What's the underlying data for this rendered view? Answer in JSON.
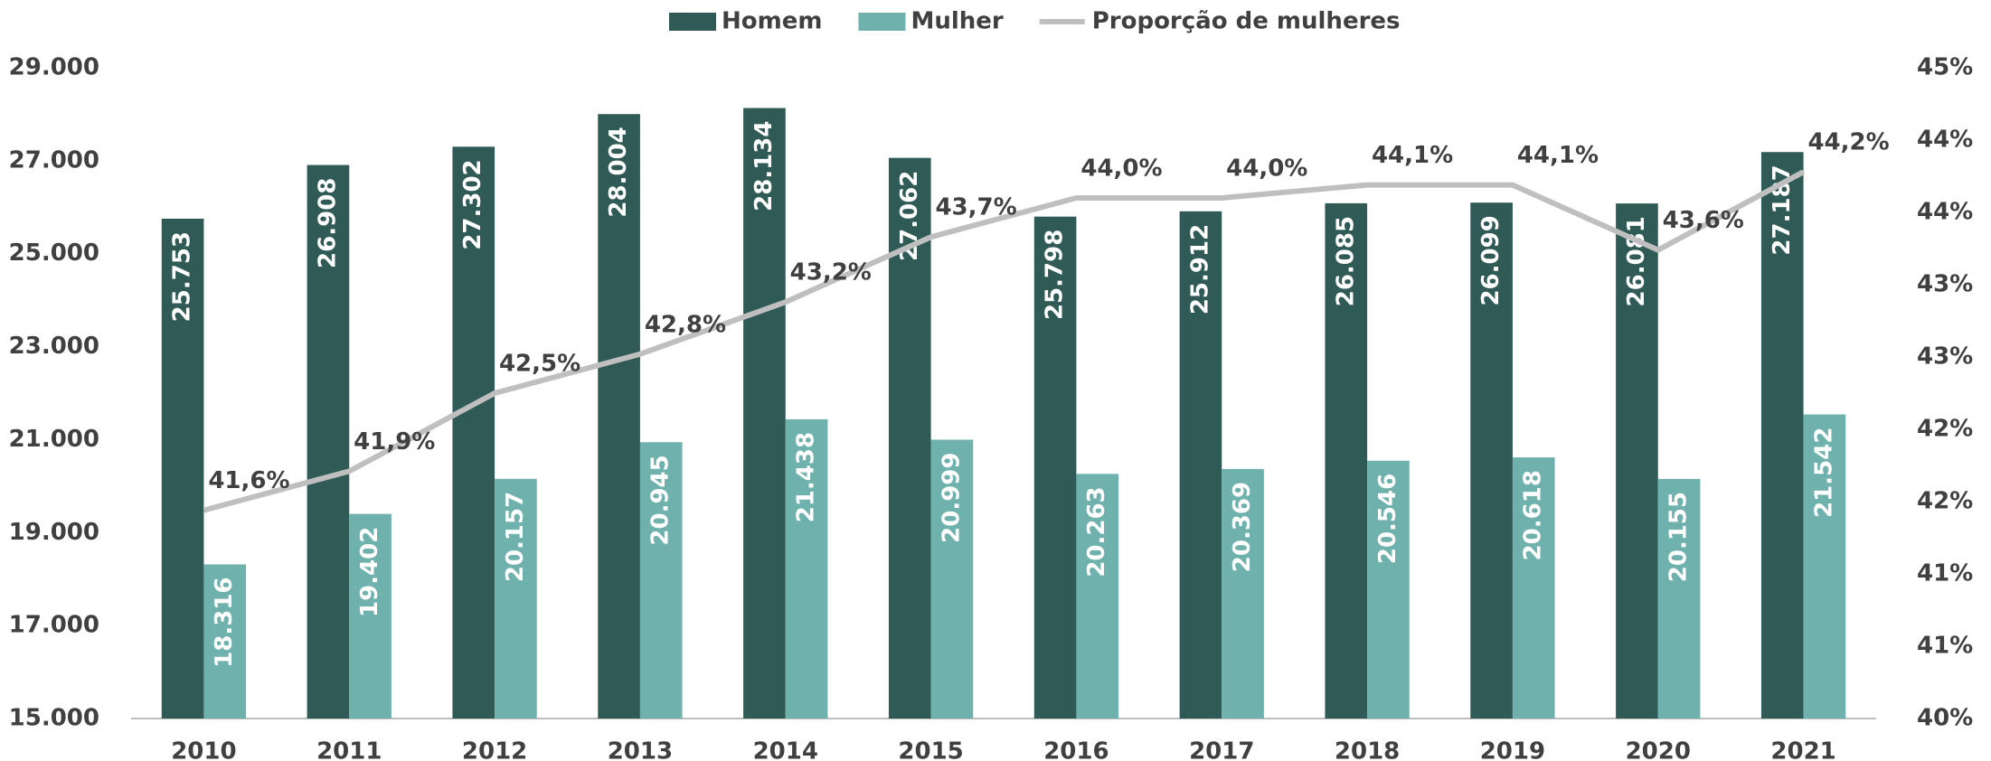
{
  "chart_data": {
    "type": "bar",
    "categories": [
      "2010",
      "2011",
      "2012",
      "2013",
      "2014",
      "2015",
      "2016",
      "2017",
      "2018",
      "2019",
      "2020",
      "2021"
    ],
    "series": [
      {
        "name": "Homem",
        "color": "#2f5a55",
        "type": "bar",
        "values": [
          25753,
          26908,
          27302,
          28004,
          28134,
          27062,
          25798,
          25912,
          26085,
          26099,
          26081,
          27187
        ],
        "value_labels": [
          "25.753",
          "26.908",
          "27.302",
          "28.004",
          "28.134",
          "27.062",
          "25.798",
          "25.912",
          "26.085",
          "26.099",
          "26.081",
          "27.187"
        ]
      },
      {
        "name": "Mulher",
        "color": "#6fb1ad",
        "type": "bar",
        "values": [
          18316,
          19402,
          20157,
          20945,
          21438,
          20999,
          20263,
          20369,
          20546,
          20618,
          20155,
          21542
        ],
        "value_labels": [
          "18.316",
          "19.402",
          "20.157",
          "20.945",
          "21.438",
          "20.999",
          "20.263",
          "20.369",
          "20.546",
          "20.618",
          "20.155",
          "21.542"
        ]
      },
      {
        "name": "Proporção de mulheres",
        "color": "#bfbfbf",
        "type": "line",
        "axis": "y2",
        "values": [
          41.6,
          41.9,
          42.5,
          42.8,
          43.2,
          43.7,
          44.0,
          44.0,
          44.1,
          44.1,
          43.6,
          44.2
        ],
        "value_labels": [
          "41,6%",
          "41,9%",
          "42,5%",
          "42,8%",
          "43,2%",
          "43,7%",
          "44,0%",
          "44,0%",
          "44,1%",
          "44,1%",
          "43,6%",
          "44,2%"
        ]
      }
    ],
    "ylim": [
      15000,
      29000
    ],
    "yticks": [
      {
        "value": 15000,
        "label": "15.000"
      },
      {
        "value": 17000,
        "label": "17.000"
      },
      {
        "value": 19000,
        "label": "19.000"
      },
      {
        "value": 21000,
        "label": "21.000"
      },
      {
        "value": 23000,
        "label": "23.000"
      },
      {
        "value": 25000,
        "label": "25.000"
      },
      {
        "value": 27000,
        "label": "27.000"
      },
      {
        "value": 29000,
        "label": "29.000"
      }
    ],
    "y2lim": [
      40,
      45
    ],
    "y2ticks": [
      {
        "value": 40,
        "label": "40%"
      },
      {
        "value": 40.556,
        "label": "41%"
      },
      {
        "value": 41.111,
        "label": "41%"
      },
      {
        "value": 41.667,
        "label": "42%"
      },
      {
        "value": 42.222,
        "label": "42%"
      },
      {
        "value": 42.778,
        "label": "43%"
      },
      {
        "value": 43.333,
        "label": "43%"
      },
      {
        "value": 43.889,
        "label": "44%"
      },
      {
        "value": 44.444,
        "label": "44%"
      },
      {
        "value": 45,
        "label": "45%"
      }
    ],
    "legend": "top",
    "grid": false
  }
}
